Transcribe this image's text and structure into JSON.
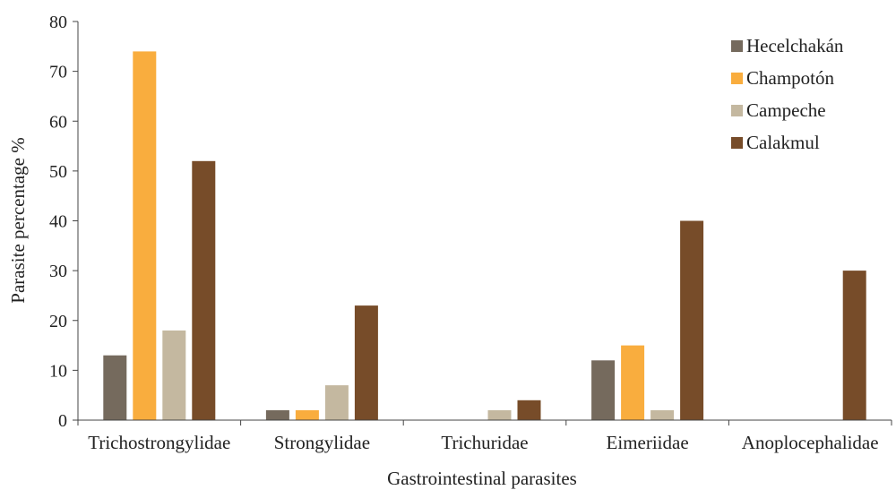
{
  "chart_data": {
    "type": "bar",
    "title": "",
    "xlabel": "Gastrointestinal parasites",
    "ylabel": "Parasite percentage %",
    "ylim": [
      0,
      80
    ],
    "yticks": [
      0,
      10,
      20,
      30,
      40,
      50,
      60,
      70,
      80
    ],
    "grid": false,
    "legend_position": "top-right",
    "categories": [
      "Trichostrongylidae",
      "Strongylidae",
      "Trichuridae",
      "Eimeriidae",
      "Anoplocephalidae"
    ],
    "series": [
      {
        "name": "Hecelchakán",
        "color": "#756a5d",
        "values": [
          13,
          2,
          0,
          12,
          0
        ]
      },
      {
        "name": "Champotón",
        "color": "#f9ad3e",
        "values": [
          74,
          2,
          0,
          15,
          0
        ]
      },
      {
        "name": "Campeche",
        "color": "#c4b8a0",
        "values": [
          18,
          7,
          2,
          2,
          0
        ]
      },
      {
        "name": "Calakmul",
        "color": "#774c29",
        "values": [
          52,
          23,
          4,
          40,
          30
        ]
      }
    ]
  }
}
